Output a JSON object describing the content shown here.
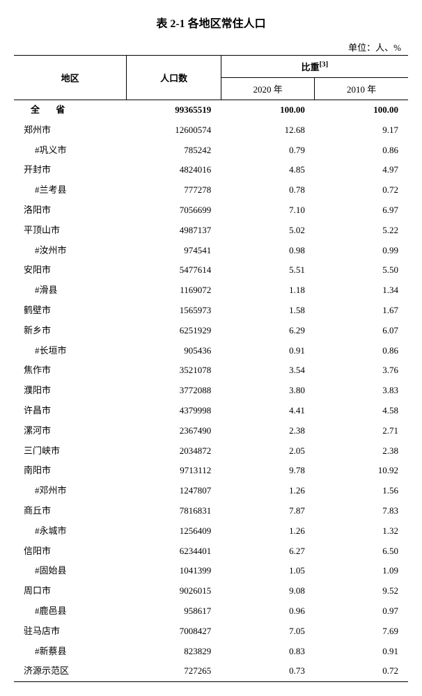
{
  "title": "表 2-1  各地区常住人口",
  "unit_label": "单位：人、%",
  "headers": {
    "region": "地区",
    "population": "人口数",
    "proportion": "比重",
    "proportion_sup": "[3]",
    "year2020": "2020 年",
    "year2010": "2010 年"
  },
  "total_row": {
    "region": "全 省",
    "population": "99365519",
    "pct2020": "100.00",
    "pct2010": "100.00"
  },
  "rows": [
    {
      "region": "郑州市",
      "population": "12600574",
      "pct2020": "12.68",
      "pct2010": "9.17",
      "indent": false
    },
    {
      "region": "#巩义市",
      "population": "785242",
      "pct2020": "0.79",
      "pct2010": "0.86",
      "indent": true
    },
    {
      "region": "开封市",
      "population": "4824016",
      "pct2020": "4.85",
      "pct2010": "4.97",
      "indent": false
    },
    {
      "region": "#兰考县",
      "population": "777278",
      "pct2020": "0.78",
      "pct2010": "0.72",
      "indent": true
    },
    {
      "region": "洛阳市",
      "population": "7056699",
      "pct2020": "7.10",
      "pct2010": "6.97",
      "indent": false
    },
    {
      "region": "平顶山市",
      "population": "4987137",
      "pct2020": "5.02",
      "pct2010": "5.22",
      "indent": false
    },
    {
      "region": "#汝州市",
      "population": "974541",
      "pct2020": "0.98",
      "pct2010": "0.99",
      "indent": true
    },
    {
      "region": "安阳市",
      "population": "5477614",
      "pct2020": "5.51",
      "pct2010": "5.50",
      "indent": false
    },
    {
      "region": "#滑县",
      "population": "1169072",
      "pct2020": "1.18",
      "pct2010": "1.34",
      "indent": true
    },
    {
      "region": "鹤壁市",
      "population": "1565973",
      "pct2020": "1.58",
      "pct2010": "1.67",
      "indent": false
    },
    {
      "region": "新乡市",
      "population": "6251929",
      "pct2020": "6.29",
      "pct2010": "6.07",
      "indent": false
    },
    {
      "region": "#长垣市",
      "population": "905436",
      "pct2020": "0.91",
      "pct2010": "0.86",
      "indent": true
    },
    {
      "region": "焦作市",
      "population": "3521078",
      "pct2020": "3.54",
      "pct2010": "3.76",
      "indent": false
    },
    {
      "region": "濮阳市",
      "population": "3772088",
      "pct2020": "3.80",
      "pct2010": "3.83",
      "indent": false
    },
    {
      "region": "许昌市",
      "population": "4379998",
      "pct2020": "4.41",
      "pct2010": "4.58",
      "indent": false
    },
    {
      "region": "漯河市",
      "population": "2367490",
      "pct2020": "2.38",
      "pct2010": "2.71",
      "indent": false
    },
    {
      "region": "三门峡市",
      "population": "2034872",
      "pct2020": "2.05",
      "pct2010": "2.38",
      "indent": false
    },
    {
      "region": "南阳市",
      "population": "9713112",
      "pct2020": "9.78",
      "pct2010": "10.92",
      "indent": false
    },
    {
      "region": "#邓州市",
      "population": "1247807",
      "pct2020": "1.26",
      "pct2010": "1.56",
      "indent": true
    },
    {
      "region": "商丘市",
      "population": "7816831",
      "pct2020": "7.87",
      "pct2010": "7.83",
      "indent": false
    },
    {
      "region": "#永城市",
      "population": "1256409",
      "pct2020": "1.26",
      "pct2010": "1.32",
      "indent": true
    },
    {
      "region": "信阳市",
      "population": "6234401",
      "pct2020": "6.27",
      "pct2010": "6.50",
      "indent": false
    },
    {
      "region": "#固始县",
      "population": "1041399",
      "pct2020": "1.05",
      "pct2010": "1.09",
      "indent": true
    },
    {
      "region": "周口市",
      "population": "9026015",
      "pct2020": "9.08",
      "pct2010": "9.52",
      "indent": false
    },
    {
      "region": "#鹿邑县",
      "population": "958617",
      "pct2020": "0.96",
      "pct2010": "0.97",
      "indent": true
    },
    {
      "region": "驻马店市",
      "population": "7008427",
      "pct2020": "7.05",
      "pct2010": "7.69",
      "indent": false
    },
    {
      "region": "#新蔡县",
      "population": "823829",
      "pct2020": "0.83",
      "pct2010": "0.91",
      "indent": true
    },
    {
      "region": "济源示范区",
      "population": "727265",
      "pct2020": "0.73",
      "pct2010": "0.72",
      "indent": false
    }
  ]
}
